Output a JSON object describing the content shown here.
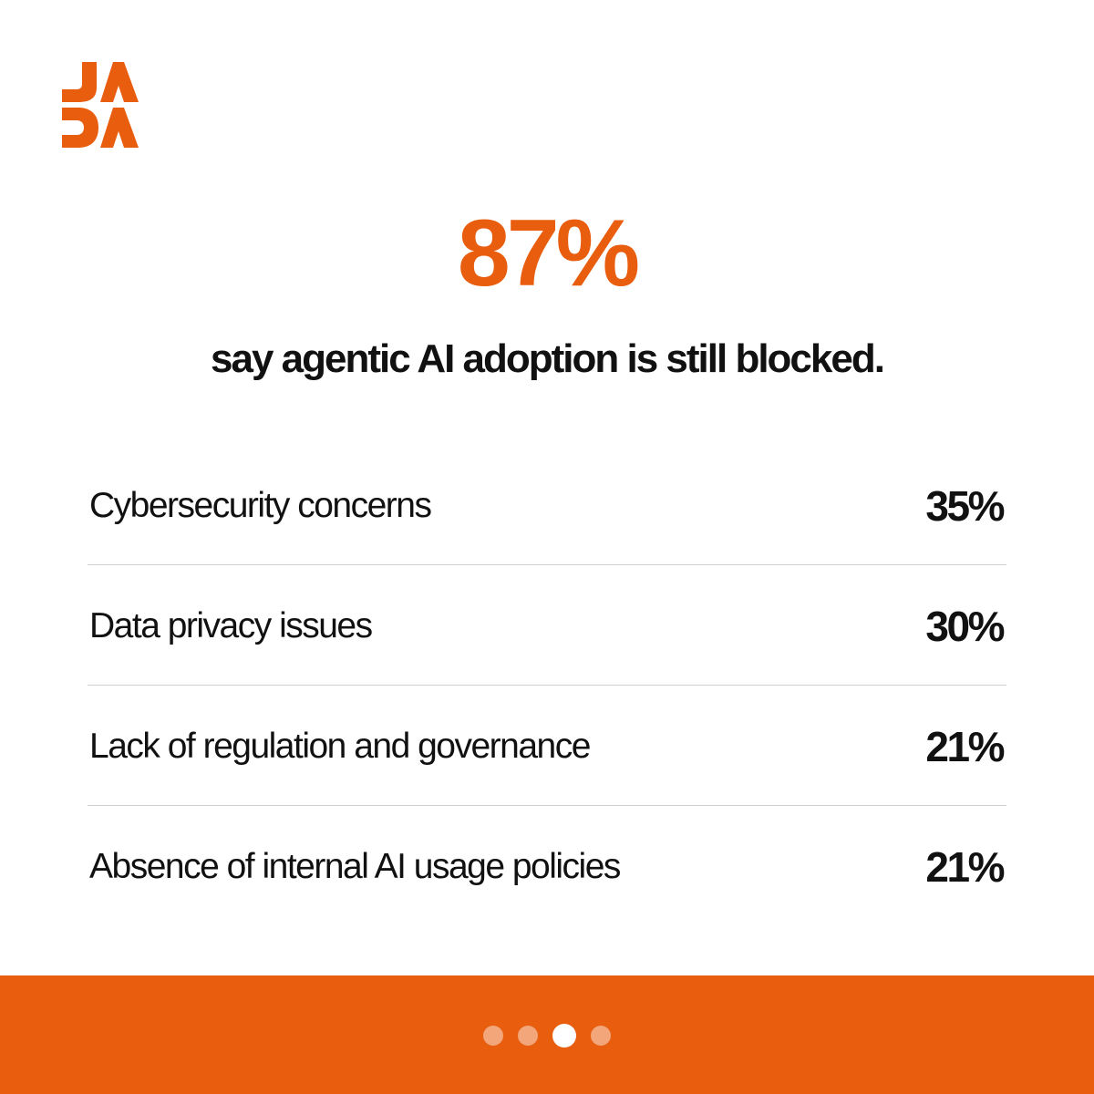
{
  "brand": {
    "logo_text": "JADA",
    "accent_color": "#E85D0E"
  },
  "headline": {
    "value": "87%",
    "subtitle": "say agentic AI adoption is still blocked."
  },
  "stats": [
    {
      "label": "Cybersecurity concerns",
      "value": "35%"
    },
    {
      "label": "Data privacy issues",
      "value": "30%"
    },
    {
      "label": "Lack of regulation and governance",
      "value": "21%"
    },
    {
      "label": "Absence of internal AI usage policies",
      "value": "21%"
    }
  ],
  "pagination": {
    "total": 4,
    "current": 3
  }
}
